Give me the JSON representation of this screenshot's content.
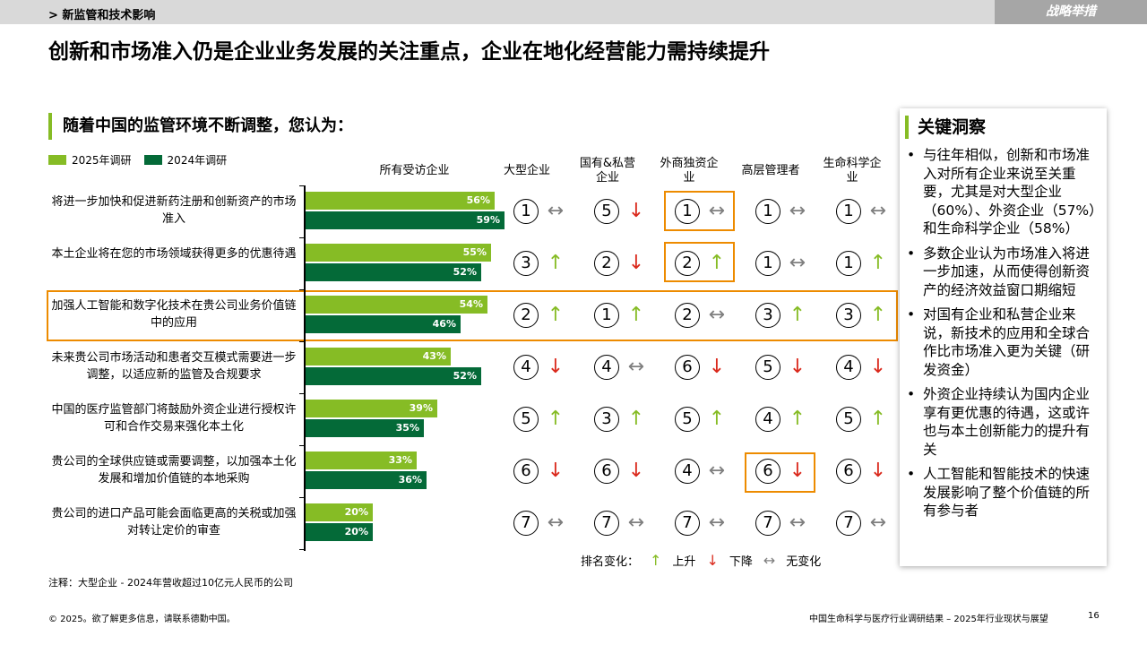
{
  "header": {
    "section": "> 新监管和技术影响",
    "tag": "战略举措"
  },
  "title": "创新和市场准入仍是企业业务发展的关注重点，企业在地化经营能力需持续提升",
  "subtitle": "随着中国的监管环境不断调整，您认为：",
  "legend": {
    "y2025": "2025年调研",
    "y2024": "2024年调研"
  },
  "columns": [
    "所有受访企业",
    "大型企业",
    "国有&私营企业",
    "外商独资企业",
    "高层管理者",
    "生命科学企业"
  ],
  "colors": {
    "y2025": "#86bc25",
    "y2024": "#046a38",
    "up": "#86bc25",
    "down": "#da291c",
    "same": "#7f7f7f",
    "highlight": "#ed8b00"
  },
  "chart_data": {
    "type": "bar",
    "orientation": "horizontal",
    "categories": [
      "将进一步加快和促进新药注册和创新资产的市场准入",
      "本土企业将在您的市场领域获得更多的优惠待遇",
      "加强人工智能和数字化技术在贵公司业务价值链中的应用",
      "未来贵公司市场活动和患者交互模式需要进一步调整，以适应新的监管及合规要求",
      "中国的医疗监管部门将鼓励外资企业进行授权许可和合作交易来强化本土化",
      "贵公司的全球供应链或需要调整，以加强本土化发展和增加价值链的本地采购",
      "贵公司的进口产品可能会面临更高的关税或加强对转让定价的审查"
    ],
    "series": [
      {
        "name": "2025年调研",
        "values": [
          56,
          55,
          54,
          43,
          39,
          33,
          20
        ]
      },
      {
        "name": "2024年调研",
        "values": [
          59,
          52,
          46,
          52,
          35,
          36,
          20
        ]
      }
    ],
    "value_labels": {
      "y2025": [
        "56%",
        "55%",
        "54%",
        "43%",
        "39%",
        "33%",
        "20%"
      ],
      "y2024": [
        "59%",
        "52%",
        "46%",
        "52%",
        "35%",
        "36%",
        "20%"
      ]
    },
    "xlim": [
      0,
      100
    ],
    "title": "随着中国的监管环境不断调整，您认为：",
    "rankings": [
      [
        {
          "n": "①",
          "c": "same"
        },
        {
          "n": "⑤",
          "c": "down"
        },
        {
          "n": "①",
          "c": "same"
        },
        {
          "n": "①",
          "c": "same"
        },
        {
          "n": "①",
          "c": "same"
        }
      ],
      [
        {
          "n": "③",
          "c": "up"
        },
        {
          "n": "②",
          "c": "down"
        },
        {
          "n": "②",
          "c": "up"
        },
        {
          "n": "①",
          "c": "same"
        },
        {
          "n": "①",
          "c": "up"
        }
      ],
      [
        {
          "n": "②",
          "c": "up"
        },
        {
          "n": "①",
          "c": "up"
        },
        {
          "n": "②",
          "c": "same"
        },
        {
          "n": "③",
          "c": "up"
        },
        {
          "n": "③",
          "c": "up"
        }
      ],
      [
        {
          "n": "④",
          "c": "down"
        },
        {
          "n": "④",
          "c": "same"
        },
        {
          "n": "⑥",
          "c": "down"
        },
        {
          "n": "⑤",
          "c": "down"
        },
        {
          "n": "④",
          "c": "down"
        }
      ],
      [
        {
          "n": "⑤",
          "c": "up"
        },
        {
          "n": "③",
          "c": "up"
        },
        {
          "n": "⑤",
          "c": "up"
        },
        {
          "n": "④",
          "c": "up"
        },
        {
          "n": "⑤",
          "c": "up"
        }
      ],
      [
        {
          "n": "⑥",
          "c": "down"
        },
        {
          "n": "⑥",
          "c": "down"
        },
        {
          "n": "④",
          "c": "same"
        },
        {
          "n": "⑥",
          "c": "down"
        },
        {
          "n": "⑥",
          "c": "down"
        }
      ],
      [
        {
          "n": "⑦",
          "c": "same"
        },
        {
          "n": "⑦",
          "c": "same"
        },
        {
          "n": "⑦",
          "c": "same"
        },
        {
          "n": "⑦",
          "c": "same"
        },
        {
          "n": "⑦",
          "c": "same"
        }
      ]
    ]
  },
  "arrows": {
    "up": "↑",
    "down": "↓",
    "same": "↔"
  },
  "rank_legend": {
    "label": "排名变化：",
    "up": "上升",
    "down": "下降",
    "same": "无变化"
  },
  "insights": {
    "title": "关键洞察",
    "items": [
      "与往年相似，创新和市场准入对所有企业来说至关重要，尤其是对大型企业（60%）、外资企业（57%）和生命科学企业（58%）",
      "多数企业认为市场准入将进一步加速，从而使得创新资产的经济效益窗口期缩短",
      "对国有企业和私营企业来说，新技术的应用和全球合作比市场准入更为关键（研发资金）",
      "外资企业持续认为国内企业享有更优惠的待遇，这或许也与本土创新能力的提升有关",
      "人工智能和智能技术的快速发展影响了整个价值链的所有参与者"
    ]
  },
  "note": "注释：大型企业 - 2024年营收超过10亿元人民币的公司",
  "footer": {
    "copyright": "© 2025。欲了解更多信息，请联系德勤中国。",
    "report": "中国生命科学与医疗行业调研结果 – 2025年行业现状与展望",
    "page": "16"
  }
}
